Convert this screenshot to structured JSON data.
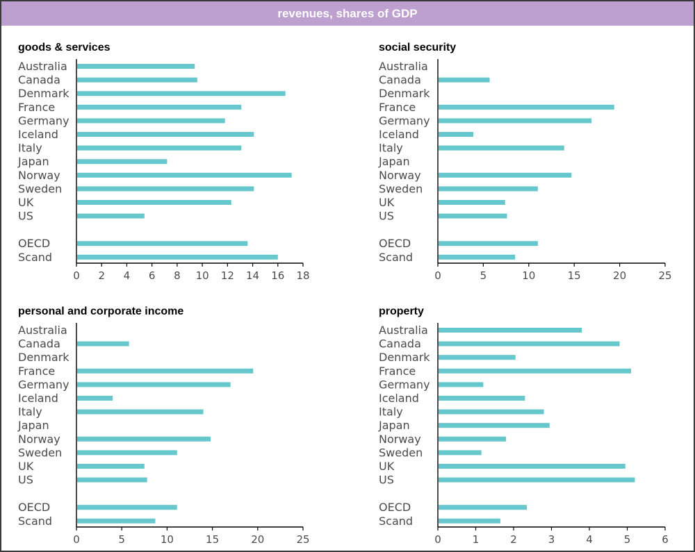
{
  "header": {
    "title": "revenues, shares of GDP"
  },
  "colors": {
    "bar": "#66c8cc",
    "header": "#bda0cf",
    "axis": "#000000",
    "text": "#4a4a4a"
  },
  "chart_data": [
    {
      "type": "bar",
      "orientation": "horizontal",
      "title": "goods & services",
      "categories": [
        "Australia",
        "Canada",
        "Denmark",
        "France",
        "Germany",
        "Iceland",
        "Italy",
        "Japan",
        "Norway",
        "Sweden",
        "UK",
        "US",
        "OECD",
        "Scand"
      ],
      "values": [
        9.4,
        9.6,
        16.6,
        13.1,
        11.8,
        14.1,
        13.1,
        7.2,
        17.1,
        14.1,
        12.3,
        5.4,
        13.6,
        16.0
      ],
      "xlim": [
        0,
        18
      ],
      "xticks": [
        "0",
        "2",
        "4",
        "6",
        "8",
        "10",
        "12",
        "14",
        "16",
        "18"
      ]
    },
    {
      "type": "bar",
      "orientation": "horizontal",
      "title": "social security",
      "categories": [
        "Australia",
        "Canada",
        "Denmark",
        "France",
        "Germany",
        "Iceland",
        "Italy",
        "Japan",
        "Norway",
        "Sweden",
        "UK",
        "US",
        "OECD",
        "Scand"
      ],
      "values": [
        null,
        5.7,
        null,
        19.4,
        16.9,
        3.9,
        13.9,
        null,
        14.7,
        11.0,
        7.4,
        7.6,
        11.0,
        8.5
      ],
      "xlim": [
        0,
        25
      ],
      "xticks": [
        "0",
        "5",
        "10",
        "15",
        "20",
        "25"
      ]
    },
    {
      "type": "bar",
      "orientation": "horizontal",
      "title": "personal and corporate income",
      "categories": [
        "Australia",
        "Canada",
        "Denmark",
        "France",
        "Germany",
        "Iceland",
        "Italy",
        "Japan",
        "Norway",
        "Sweden",
        "UK",
        "US",
        "OECD",
        "Scand"
      ],
      "values": [
        null,
        5.8,
        null,
        19.5,
        17.0,
        4.0,
        14.0,
        null,
        14.8,
        11.1,
        7.5,
        7.8,
        11.1,
        8.7
      ],
      "xlim": [
        0,
        25
      ],
      "xticks": [
        "0",
        "5",
        "10",
        "15",
        "20",
        "25"
      ]
    },
    {
      "type": "bar",
      "orientation": "horizontal",
      "title": "property",
      "categories": [
        "Australia",
        "Canada",
        "Denmark",
        "France",
        "Germany",
        "Iceland",
        "Italy",
        "Japan",
        "Norway",
        "Sweden",
        "UK",
        "US",
        "OECD",
        "Scand"
      ],
      "values": [
        3.8,
        4.8,
        2.05,
        5.1,
        1.2,
        2.3,
        2.8,
        2.95,
        1.8,
        1.15,
        4.95,
        5.2,
        2.35,
        1.65
      ],
      "xlim": [
        0,
        6
      ],
      "xticks": [
        "0",
        "1",
        "2",
        "3",
        "4",
        "5",
        "6"
      ]
    }
  ]
}
